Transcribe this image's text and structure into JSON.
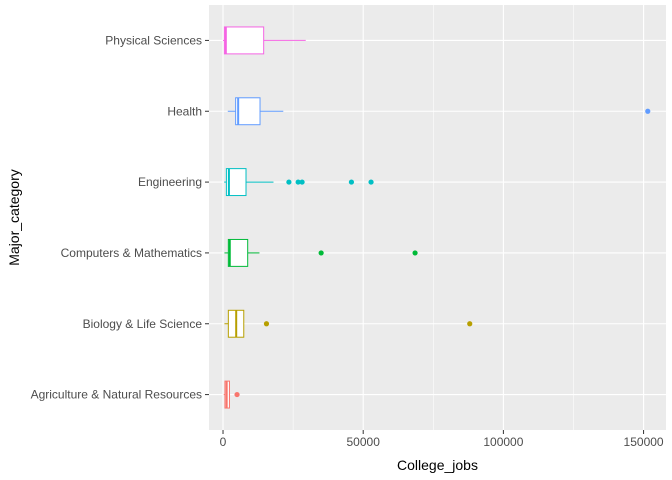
{
  "chart_data": {
    "type": "boxplot",
    "orientation": "horizontal",
    "xlabel": "College_jobs",
    "ylabel": "Major_category",
    "xlim": [
      -5000,
      158000
    ],
    "x_ticks": [
      0,
      50000,
      100000,
      150000
    ],
    "x_tick_labels": [
      "0",
      "50000",
      "100000",
      "150000"
    ],
    "grid": true,
    "legend": "none",
    "categories": [
      {
        "name": "Agriculture & Natural Resources",
        "color": "#F8766D",
        "min": 250,
        "q1": 700,
        "median": 1300,
        "q3": 2300,
        "max": 2500,
        "outliers": [
          5000
        ]
      },
      {
        "name": "Biology & Life Science",
        "color": "#B79F00",
        "min": 500,
        "q1": 1900,
        "median": 4700,
        "q3": 7400,
        "max": 7400,
        "outliers": [
          15500,
          88000
        ]
      },
      {
        "name": "Computers & Mathematics",
        "color": "#00BA38",
        "min": 500,
        "q1": 1900,
        "median": 2400,
        "q3": 8800,
        "max": 13000,
        "outliers": [
          35000,
          68500
        ]
      },
      {
        "name": "Engineering",
        "color": "#00BFC4",
        "min": 400,
        "q1": 1200,
        "median": 2100,
        "q3": 8200,
        "max": 18000,
        "outliers": [
          23500,
          26800,
          28200,
          45800,
          52800
        ]
      },
      {
        "name": "Health",
        "color": "#619CFF",
        "min": 1700,
        "q1": 4500,
        "median": 5400,
        "q3": 13200,
        "max": 21500,
        "outliers": [
          151500
        ]
      },
      {
        "name": "Physical Sciences",
        "color": "#F564E3",
        "min": 0,
        "q1": 500,
        "median": 1000,
        "q3": 14500,
        "max": 29500,
        "outliers": []
      }
    ]
  }
}
